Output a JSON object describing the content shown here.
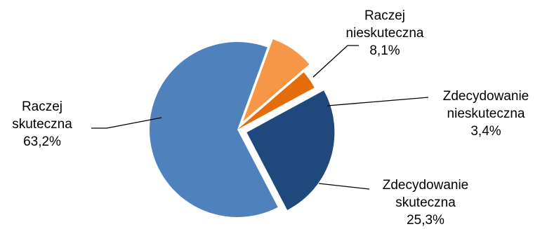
{
  "chart_data": {
    "type": "pie",
    "title": "",
    "slices": [
      {
        "label_lines": [
          "Raczej",
          "nieskuteczna"
        ],
        "value_label": "8,1%",
        "value": 8.1,
        "color": "#F79646",
        "exploded": true
      },
      {
        "label_lines": [
          "Zdecydowanie",
          "nieskuteczna"
        ],
        "value_label": "3,4%",
        "value": 3.4,
        "color": "#E46C0A",
        "exploded": false
      },
      {
        "label_lines": [
          "Zdecydowanie",
          "skuteczna"
        ],
        "value_label": "25,3%",
        "value": 25.3,
        "color": "#1F497D",
        "exploded": true
      },
      {
        "label_lines": [
          "Raczej",
          "skuteczna"
        ],
        "value_label": "63,2%",
        "value": 63.2,
        "color": "#4F81BD",
        "exploded": false
      }
    ]
  }
}
